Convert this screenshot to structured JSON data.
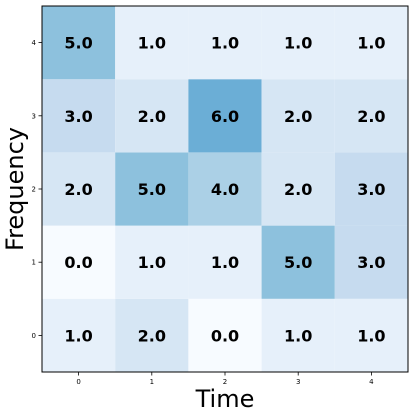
{
  "chart_data": {
    "type": "heatmap",
    "xlabel": "Time",
    "ylabel": "Frequency",
    "x_ticks": [
      "0",
      "1",
      "2",
      "3",
      "4"
    ],
    "y_ticks": [
      "0",
      "1",
      "2",
      "3",
      "4"
    ],
    "value_format": "0.0",
    "colormap": "Blues",
    "color_range": [
      0,
      12
    ],
    "grid": false,
    "values": [
      [
        1.0,
        2.0,
        0.0,
        1.0,
        1.0
      ],
      [
        0.0,
        1.0,
        1.0,
        5.0,
        3.0
      ],
      [
        2.0,
        5.0,
        4.0,
        2.0,
        3.0
      ],
      [
        3.0,
        2.0,
        6.0,
        2.0,
        2.0
      ],
      [
        5.0,
        1.0,
        1.0,
        1.0,
        1.0
      ]
    ]
  },
  "colors": {
    "frame": "#000000",
    "text": "#000000",
    "background": "#ffffff"
  }
}
